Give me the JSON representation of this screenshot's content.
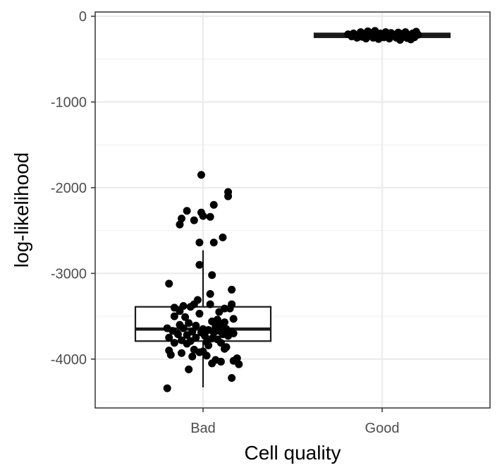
{
  "chart_data": {
    "type": "box",
    "xlabel": "Cell quality",
    "ylabel": "log-likelihood",
    "categories": [
      "Bad",
      "Good"
    ],
    "ylim": [
      -4570,
      50
    ],
    "y_ticks": [
      0,
      -1000,
      -2000,
      -3000,
      -4000
    ],
    "y_tick_labels": [
      "0",
      "-1000",
      "-2000",
      "-3000",
      "-4000"
    ],
    "grid": true,
    "boxes": [
      {
        "category": "Bad",
        "q1": -3790,
        "median": -3650,
        "q3": -3390,
        "whisker_low": -4330,
        "whisker_high": -2730
      },
      {
        "category": "Good",
        "q1": -245,
        "median": -222,
        "q3": -200,
        "whisker_low": -285,
        "whisker_high": -165
      }
    ],
    "points": [
      {
        "category": "Bad",
        "x_offset": -0.01,
        "y": -1850
      },
      {
        "category": "Bad",
        "x_offset": 0.14,
        "y": -2050
      },
      {
        "category": "Bad",
        "x_offset": 0.14,
        "y": -2100
      },
      {
        "category": "Bad",
        "x_offset": 0.06,
        "y": -2200
      },
      {
        "category": "Bad",
        "x_offset": -0.09,
        "y": -2270
      },
      {
        "category": "Bad",
        "x_offset": -0.01,
        "y": -2290
      },
      {
        "category": "Bad",
        "x_offset": 0.0,
        "y": -2330
      },
      {
        "category": "Bad",
        "x_offset": 0.04,
        "y": -2340
      },
      {
        "category": "Bad",
        "x_offset": -0.12,
        "y": -2360
      },
      {
        "category": "Bad",
        "x_offset": -0.05,
        "y": -2380
      },
      {
        "category": "Bad",
        "x_offset": -0.13,
        "y": -2430
      },
      {
        "category": "Bad",
        "x_offset": 0.11,
        "y": -2580
      },
      {
        "category": "Bad",
        "x_offset": -0.02,
        "y": -2640
      },
      {
        "category": "Bad",
        "x_offset": 0.06,
        "y": -2640
      },
      {
        "category": "Bad",
        "x_offset": -0.02,
        "y": -2900
      },
      {
        "category": "Bad",
        "x_offset": 0.05,
        "y": -3020
      },
      {
        "category": "Bad",
        "x_offset": -0.19,
        "y": -3120
      },
      {
        "category": "Bad",
        "x_offset": 0.16,
        "y": -3190
      },
      {
        "category": "Bad",
        "x_offset": 0.04,
        "y": -3240
      },
      {
        "category": "Bad",
        "x_offset": -0.03,
        "y": -3310
      },
      {
        "category": "Bad",
        "x_offset": -0.05,
        "y": -3360
      },
      {
        "category": "Bad",
        "x_offset": 0.04,
        "y": -3360
      },
      {
        "category": "Bad",
        "x_offset": 0.16,
        "y": -3360
      },
      {
        "category": "Bad",
        "x_offset": -0.16,
        "y": -3400
      },
      {
        "category": "Bad",
        "x_offset": -0.11,
        "y": -3380
      },
      {
        "category": "Bad",
        "x_offset": -0.07,
        "y": -3390
      },
      {
        "category": "Bad",
        "x_offset": 0.12,
        "y": -3410
      },
      {
        "category": "Bad",
        "x_offset": 0.15,
        "y": -3410
      },
      {
        "category": "Bad",
        "x_offset": -0.13,
        "y": -3440
      },
      {
        "category": "Bad",
        "x_offset": 0.09,
        "y": -3450
      },
      {
        "category": "Bad",
        "x_offset": -0.02,
        "y": -3470
      },
      {
        "category": "Bad",
        "x_offset": -0.16,
        "y": -3500
      },
      {
        "category": "Bad",
        "x_offset": -0.1,
        "y": -3510
      },
      {
        "category": "Bad",
        "x_offset": 0.17,
        "y": -3530
      },
      {
        "category": "Bad",
        "x_offset": 0.08,
        "y": -3540
      },
      {
        "category": "Bad",
        "x_offset": 0.05,
        "y": -3560
      },
      {
        "category": "Bad",
        "x_offset": 0.12,
        "y": -3570
      },
      {
        "category": "Bad",
        "x_offset": -0.08,
        "y": -3580
      },
      {
        "category": "Bad",
        "x_offset": 0.1,
        "y": -3590
      },
      {
        "category": "Bad",
        "x_offset": -0.13,
        "y": -3600
      },
      {
        "category": "Bad",
        "x_offset": -0.04,
        "y": -3610
      },
      {
        "category": "Bad",
        "x_offset": 0.07,
        "y": -3620
      },
      {
        "category": "Bad",
        "x_offset": -0.2,
        "y": -3640
      },
      {
        "category": "Bad",
        "x_offset": -0.11,
        "y": -3640
      },
      {
        "category": "Bad",
        "x_offset": 0.0,
        "y": -3650
      },
      {
        "category": "Bad",
        "x_offset": 0.13,
        "y": -3650
      },
      {
        "category": "Bad",
        "x_offset": 0.03,
        "y": -3660
      },
      {
        "category": "Bad",
        "x_offset": -0.17,
        "y": -3670
      },
      {
        "category": "Bad",
        "x_offset": 0.09,
        "y": -3670
      },
      {
        "category": "Bad",
        "x_offset": -0.06,
        "y": -3680
      },
      {
        "category": "Bad",
        "x_offset": 0.16,
        "y": -3680
      },
      {
        "category": "Bad",
        "x_offset": -0.01,
        "y": -3690
      },
      {
        "category": "Bad",
        "x_offset": 0.06,
        "y": -3690
      },
      {
        "category": "Bad",
        "x_offset": 0.17,
        "y": -3700
      },
      {
        "category": "Bad",
        "x_offset": -0.14,
        "y": -3710
      },
      {
        "category": "Bad",
        "x_offset": 0.11,
        "y": -3710
      },
      {
        "category": "Bad",
        "x_offset": -0.09,
        "y": -3720
      },
      {
        "category": "Bad",
        "x_offset": 0.01,
        "y": -3730
      },
      {
        "category": "Bad",
        "x_offset": 0.14,
        "y": -3730
      },
      {
        "category": "Bad",
        "x_offset": -0.19,
        "y": -3750
      },
      {
        "category": "Bad",
        "x_offset": -0.04,
        "y": -3750
      },
      {
        "category": "Bad",
        "x_offset": 0.05,
        "y": -3760
      },
      {
        "category": "Bad",
        "x_offset": 0.08,
        "y": -3770
      },
      {
        "category": "Bad",
        "x_offset": -0.12,
        "y": -3780
      },
      {
        "category": "Bad",
        "x_offset": -0.07,
        "y": -3790
      },
      {
        "category": "Bad",
        "x_offset": 0.02,
        "y": -3800
      },
      {
        "category": "Bad",
        "x_offset": -0.16,
        "y": -3810
      },
      {
        "category": "Bad",
        "x_offset": 0.1,
        "y": -3810
      },
      {
        "category": "Bad",
        "x_offset": -0.09,
        "y": -3820
      },
      {
        "category": "Bad",
        "x_offset": 0.03,
        "y": -3840
      },
      {
        "category": "Bad",
        "x_offset": 0.13,
        "y": -3860
      },
      {
        "category": "Bad",
        "x_offset": 0.12,
        "y": -3880
      },
      {
        "category": "Bad",
        "x_offset": -0.05,
        "y": -3890
      },
      {
        "category": "Bad",
        "x_offset": -0.19,
        "y": -3900
      },
      {
        "category": "Bad",
        "x_offset": 0.0,
        "y": -3910
      },
      {
        "category": "Bad",
        "x_offset": -0.02,
        "y": -3920
      },
      {
        "category": "Bad",
        "x_offset": -0.12,
        "y": -3930
      },
      {
        "category": "Bad",
        "x_offset": -0.18,
        "y": -3950
      },
      {
        "category": "Bad",
        "x_offset": 0.02,
        "y": -3960
      },
      {
        "category": "Bad",
        "x_offset": -0.06,
        "y": -3970
      },
      {
        "category": "Bad",
        "x_offset": 0.19,
        "y": -3990
      },
      {
        "category": "Bad",
        "x_offset": 0.07,
        "y": -4010
      },
      {
        "category": "Bad",
        "x_offset": 0.17,
        "y": -4020
      },
      {
        "category": "Bad",
        "x_offset": 0.1,
        "y": -4030
      },
      {
        "category": "Bad",
        "x_offset": 0.05,
        "y": -4050
      },
      {
        "category": "Bad",
        "x_offset": 0.2,
        "y": -4060
      },
      {
        "category": "Bad",
        "x_offset": -0.08,
        "y": -4120
      },
      {
        "category": "Bad",
        "x_offset": 0.16,
        "y": -4220
      },
      {
        "category": "Bad",
        "x_offset": -0.2,
        "y": -4340
      },
      {
        "category": "Good",
        "x_offset": -0.19,
        "y": -210
      },
      {
        "category": "Good",
        "x_offset": -0.17,
        "y": -235
      },
      {
        "category": "Good",
        "x_offset": -0.16,
        "y": -200
      },
      {
        "category": "Good",
        "x_offset": -0.14,
        "y": -250
      },
      {
        "category": "Good",
        "x_offset": -0.13,
        "y": -215
      },
      {
        "category": "Good",
        "x_offset": -0.12,
        "y": -185
      },
      {
        "category": "Good",
        "x_offset": -0.11,
        "y": -240
      },
      {
        "category": "Good",
        "x_offset": -0.1,
        "y": -205
      },
      {
        "category": "Good",
        "x_offset": -0.09,
        "y": -260
      },
      {
        "category": "Good",
        "x_offset": -0.08,
        "y": -175
      },
      {
        "category": "Good",
        "x_offset": -0.07,
        "y": -225
      },
      {
        "category": "Good",
        "x_offset": -0.06,
        "y": -195
      },
      {
        "category": "Good",
        "x_offset": -0.05,
        "y": -250
      },
      {
        "category": "Good",
        "x_offset": -0.04,
        "y": -170
      },
      {
        "category": "Good",
        "x_offset": -0.03,
        "y": -230
      },
      {
        "category": "Good",
        "x_offset": -0.02,
        "y": -265
      },
      {
        "category": "Good",
        "x_offset": -0.01,
        "y": -200
      },
      {
        "category": "Good",
        "x_offset": 0.0,
        "y": -220
      },
      {
        "category": "Good",
        "x_offset": 0.01,
        "y": -245
      },
      {
        "category": "Good",
        "x_offset": 0.02,
        "y": -185
      },
      {
        "category": "Good",
        "x_offset": 0.03,
        "y": -210
      },
      {
        "category": "Good",
        "x_offset": 0.04,
        "y": -260
      },
      {
        "category": "Good",
        "x_offset": 0.05,
        "y": -195
      },
      {
        "category": "Good",
        "x_offset": 0.06,
        "y": -230
      },
      {
        "category": "Good",
        "x_offset": 0.07,
        "y": -215
      },
      {
        "category": "Good",
        "x_offset": 0.08,
        "y": -250
      },
      {
        "category": "Good",
        "x_offset": 0.09,
        "y": -190
      },
      {
        "category": "Good",
        "x_offset": 0.1,
        "y": -275
      },
      {
        "category": "Good",
        "x_offset": 0.11,
        "y": -205
      },
      {
        "category": "Good",
        "x_offset": 0.12,
        "y": -240
      },
      {
        "category": "Good",
        "x_offset": 0.13,
        "y": -185
      },
      {
        "category": "Good",
        "x_offset": 0.14,
        "y": -255
      },
      {
        "category": "Good",
        "x_offset": 0.15,
        "y": -220
      },
      {
        "category": "Good",
        "x_offset": 0.16,
        "y": -270
      },
      {
        "category": "Good",
        "x_offset": 0.17,
        "y": -200
      },
      {
        "category": "Good",
        "x_offset": 0.18,
        "y": -245
      },
      {
        "category": "Good",
        "x_offset": 0.19,
        "y": -180
      },
      {
        "category": "Good",
        "x_offset": 0.2,
        "y": -215
      }
    ]
  }
}
